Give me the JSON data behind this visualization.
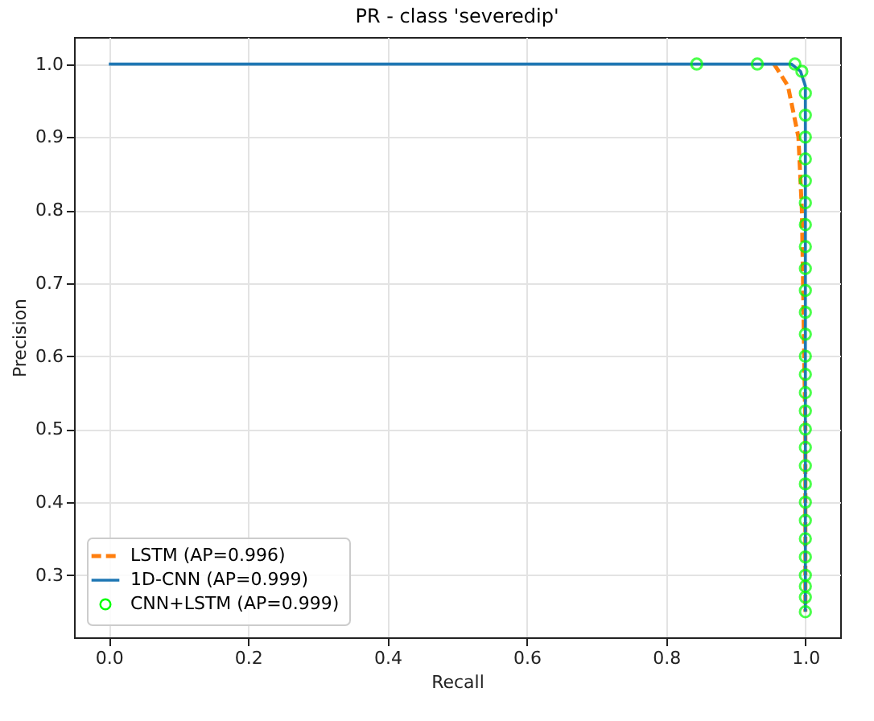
{
  "chart_data": {
    "type": "line",
    "title": "PR - class 'severedip'",
    "xlabel": "Recall",
    "ylabel": "Precision",
    "xlim": [
      -0.05,
      1.05
    ],
    "ylim": [
      0.215,
      1.037
    ],
    "xticks": [
      {
        "value": 0,
        "label": "0.0"
      },
      0.2,
      0.4,
      0.6,
      0.8,
      {
        "value": 1,
        "label": "1.0"
      }
    ],
    "yticks": [
      0.3,
      0.4,
      0.5,
      0.6,
      0.7,
      0.8,
      0.9,
      {
        "value": 1,
        "label": "1.0"
      }
    ],
    "grid": true,
    "legend": "bottom left",
    "series": [
      {
        "name": "LSTM (AP=0.996)",
        "type": "line",
        "line_style": "dashed",
        "color": "#ff7f0e",
        "x": [
          0.955,
          0.975,
          0.99,
          0.995,
          1.0,
          1.0
        ],
        "values": [
          1.0,
          0.97,
          0.9,
          0.8,
          0.5,
          0.25
        ]
      },
      {
        "name": "1D-CNN (AP=0.999)",
        "type": "line",
        "line_style": "solid",
        "color": "#1f77b4",
        "x": [
          0.0,
          0.98,
          0.993,
          1.0,
          1.0
        ],
        "values": [
          1.0,
          1.0,
          0.99,
          0.97,
          0.25
        ]
      },
      {
        "name": "CNN+LSTM (AP=0.999)",
        "type": "scatter",
        "marker": "circle",
        "color": "#00ff00",
        "x": [
          0.844,
          0.931,
          0.985,
          0.995,
          1.0,
          1.0,
          1.0,
          1.0,
          1.0,
          1.0,
          1.0,
          1.0,
          1.0,
          1.0,
          1.0,
          1.0,
          1.0,
          1.0,
          1.0,
          1.0,
          1.0,
          1.0,
          1.0,
          1.0,
          1.0,
          1.0,
          1.0,
          1.0,
          1.0,
          1.0,
          1.0,
          1.0
        ],
        "values": [
          1.0,
          1.0,
          1.0,
          0.99,
          0.96,
          0.93,
          0.9,
          0.87,
          0.84,
          0.81,
          0.78,
          0.75,
          0.72,
          0.69,
          0.66,
          0.63,
          0.6,
          0.575,
          0.55,
          0.525,
          0.5,
          0.475,
          0.45,
          0.425,
          0.4,
          0.375,
          0.35,
          0.325,
          0.3,
          0.285,
          0.27,
          0.25
        ]
      }
    ]
  }
}
